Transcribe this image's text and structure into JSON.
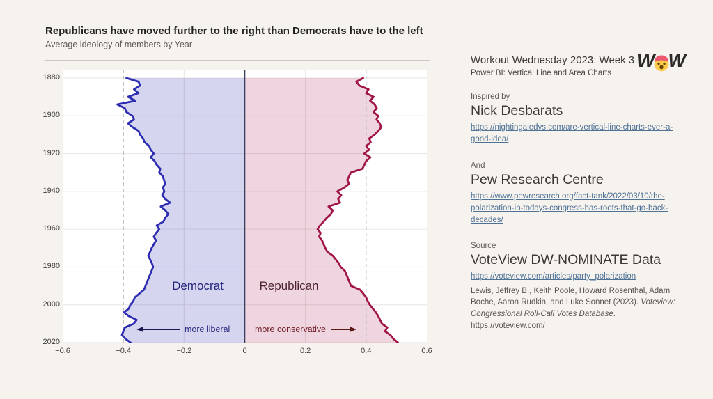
{
  "header": {
    "title": "Republicans have moved further to the right than Democrats have to the left",
    "subtitle": "Average ideology of members by Year"
  },
  "panel": {
    "workout_title": "Workout Wednesday 2023: Week 3",
    "workout_subtitle": "Power BI: Vertical Line and Area Charts",
    "logo_left": "W",
    "logo_right": "W",
    "inspired_label": "Inspired by",
    "inspired_name": "Nick Desbarats",
    "inspired_link": "https://nightingaledvs.com/are-vertical-line-charts-ever-a-good-idea/",
    "and_label": "And",
    "and_name": "Pew Research Centre",
    "and_link": "https://www.pewresearch.org/fact-tank/2022/03/10/the-polarization-in-todays-congress-has-roots-that-go-back-decades/",
    "source_label": "Source",
    "source_name": "VoteView DW-NOMINATE Data",
    "source_link": "https://voteview.com/articles/party_polarization",
    "citation_normal": "Lewis, Jeffrey B., Keith Poole, Howard Rosenthal, Adam Boche, Aaron Rudkin, and Luke Sonnet (2023). ",
    "citation_italic": "Voteview: Congressional Roll-Call Votes Database",
    "citation_tail": ". https://voteview.com/"
  },
  "chart_data": {
    "type": "area",
    "title": "Republicans have moved further to the right than Democrats have to the left",
    "subtitle": "Average ideology of members by Year",
    "orientation": "year-on-vertical-axis",
    "plot_bg": "#ffffff",
    "x_axis": {
      "min": -0.6,
      "max": 0.6,
      "ticks": [
        -0.6,
        -0.4,
        -0.2,
        0,
        0.2,
        0.4,
        0.6
      ],
      "tick_labels": [
        "−0.6",
        "−0.4",
        "−0.2",
        "0",
        "0.2",
        "0.4",
        "0.6"
      ],
      "minor_grid": [
        -0.2,
        0.2
      ]
    },
    "y_axis": {
      "min": 1880,
      "max": 2020,
      "ticks": [
        1880,
        1900,
        1920,
        1940,
        1960,
        1980,
        2000,
        2020
      ]
    },
    "reference_lines": {
      "center": 0,
      "dashed": [
        -0.4,
        0.4
      ]
    },
    "colors": {
      "grid": "#e8e6e3",
      "minor_grid": "#e3e1de",
      "dashed": "#b5b2af",
      "center_line": "#3d3d5e",
      "dem_line": "#2d2db2",
      "dem_fill": "rgba(92,92,196,0.26)",
      "rep_line": "#a11448",
      "rep_fill": "rgba(166,30,85,0.19)"
    },
    "annotations": {
      "democrat": "Democrat",
      "republican": "Republican",
      "more_liberal": "more liberal",
      "more_conservative": "more conservative"
    },
    "years": [
      1880,
      1882,
      1884,
      1886,
      1888,
      1890,
      1892,
      1894,
      1896,
      1898,
      1900,
      1902,
      1904,
      1906,
      1908,
      1910,
      1912,
      1914,
      1916,
      1918,
      1920,
      1922,
      1924,
      1926,
      1928,
      1930,
      1932,
      1934,
      1936,
      1938,
      1940,
      1942,
      1944,
      1946,
      1948,
      1950,
      1952,
      1954,
      1956,
      1958,
      1960,
      1962,
      1964,
      1966,
      1968,
      1970,
      1972,
      1974,
      1976,
      1978,
      1980,
      1982,
      1984,
      1986,
      1988,
      1990,
      1992,
      1994,
      1996,
      1998,
      2000,
      2002,
      2004,
      2006,
      2008,
      2010,
      2012,
      2014,
      2016,
      2018,
      2020
    ],
    "series": [
      {
        "name": "Democrat",
        "values": [
          -0.39,
          -0.35,
          -0.345,
          -0.365,
          -0.35,
          -0.385,
          -0.36,
          -0.42,
          -0.395,
          -0.39,
          -0.37,
          -0.365,
          -0.385,
          -0.37,
          -0.35,
          -0.345,
          -0.335,
          -0.33,
          -0.315,
          -0.31,
          -0.3,
          -0.31,
          -0.297,
          -0.29,
          -0.278,
          -0.282,
          -0.27,
          -0.266,
          -0.262,
          -0.27,
          -0.265,
          -0.272,
          -0.262,
          -0.246,
          -0.277,
          -0.262,
          -0.252,
          -0.262,
          -0.268,
          -0.29,
          -0.282,
          -0.292,
          -0.3,
          -0.292,
          -0.3,
          -0.307,
          -0.312,
          -0.318,
          -0.312,
          -0.306,
          -0.302,
          -0.307,
          -0.312,
          -0.317,
          -0.322,
          -0.327,
          -0.332,
          -0.347,
          -0.362,
          -0.367,
          -0.377,
          -0.382,
          -0.398,
          -0.382,
          -0.356,
          -0.366,
          -0.395,
          -0.4,
          -0.405,
          -0.393,
          -0.376
        ]
      },
      {
        "name": "Republican",
        "values": [
          0.39,
          0.368,
          0.378,
          0.408,
          0.4,
          0.425,
          0.413,
          0.428,
          0.435,
          0.424,
          0.44,
          0.434,
          0.445,
          0.45,
          0.44,
          0.428,
          0.41,
          0.415,
          0.4,
          0.41,
          0.394,
          0.414,
          0.4,
          0.394,
          0.388,
          0.35,
          0.344,
          0.338,
          0.344,
          0.328,
          0.305,
          0.318,
          0.308,
          0.314,
          0.276,
          0.29,
          0.284,
          0.27,
          0.26,
          0.248,
          0.24,
          0.25,
          0.245,
          0.255,
          0.26,
          0.266,
          0.272,
          0.29,
          0.3,
          0.31,
          0.316,
          0.33,
          0.335,
          0.34,
          0.345,
          0.35,
          0.38,
          0.39,
          0.4,
          0.405,
          0.412,
          0.422,
          0.432,
          0.44,
          0.446,
          0.452,
          0.47,
          0.462,
          0.48,
          0.49,
          0.505
        ]
      }
    ]
  }
}
